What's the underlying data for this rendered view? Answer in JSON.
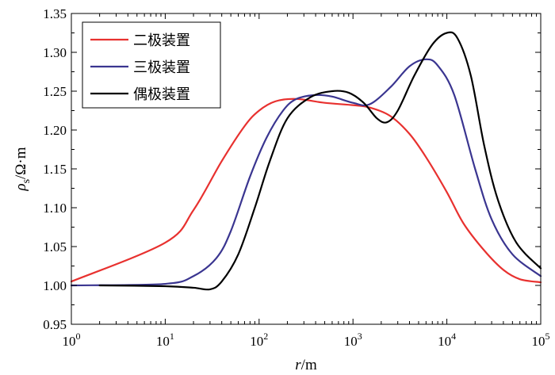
{
  "chart_data": {
    "type": "line",
    "xscale": "log",
    "xlim": [
      1,
      100000
    ],
    "ylim": [
      0.95,
      1.35
    ],
    "grid": false,
    "legend_position": "top-left",
    "xlabel": {
      "symbol": "r",
      "unit": "/m"
    },
    "ylabel": {
      "symbol": "ρ",
      "sub": "s",
      "unit": "/Ω·m"
    },
    "x_ticks": [
      {
        "base": "10",
        "exp": "0",
        "value": 1
      },
      {
        "base": "10",
        "exp": "1",
        "value": 10
      },
      {
        "base": "10",
        "exp": "2",
        "value": 100
      },
      {
        "base": "10",
        "exp": "3",
        "value": 1000
      },
      {
        "base": "10",
        "exp": "4",
        "value": 10000
      },
      {
        "base": "10",
        "exp": "5",
        "value": 100000
      }
    ],
    "y_ticks": [
      "0.95",
      "1.00",
      "1.05",
      "1.10",
      "1.15",
      "1.20",
      "1.25",
      "1.30",
      "1.35"
    ],
    "series": [
      {
        "name": "二极装置",
        "color": "#e8312f",
        "points": [
          [
            1,
            1.005
          ],
          [
            10,
            1.055
          ],
          [
            20,
            1.097
          ],
          [
            40,
            1.16
          ],
          [
            70,
            1.205
          ],
          [
            100,
            1.225
          ],
          [
            150,
            1.237
          ],
          [
            250,
            1.24
          ],
          [
            500,
            1.235
          ],
          [
            1000,
            1.232
          ],
          [
            1500,
            1.229
          ],
          [
            2500,
            1.218
          ],
          [
            4000,
            1.195
          ],
          [
            6000,
            1.165
          ],
          [
            10000,
            1.12
          ],
          [
            15000,
            1.08
          ],
          [
            25000,
            1.045
          ],
          [
            40000,
            1.02
          ],
          [
            60000,
            1.008
          ],
          [
            100000,
            1.004
          ]
        ]
      },
      {
        "name": "三极装置",
        "color": "#3a3590",
        "points": [
          [
            1,
            1.0
          ],
          [
            10,
            1.002
          ],
          [
            20,
            1.012
          ],
          [
            35,
            1.035
          ],
          [
            50,
            1.07
          ],
          [
            80,
            1.14
          ],
          [
            120,
            1.19
          ],
          [
            180,
            1.225
          ],
          [
            250,
            1.24
          ],
          [
            400,
            1.245
          ],
          [
            600,
            1.243
          ],
          [
            1000,
            1.235
          ],
          [
            1500,
            1.233
          ],
          [
            2500,
            1.255
          ],
          [
            4000,
            1.282
          ],
          [
            6000,
            1.291
          ],
          [
            8000,
            1.283
          ],
          [
            12000,
            1.245
          ],
          [
            20000,
            1.15
          ],
          [
            30000,
            1.085
          ],
          [
            50000,
            1.04
          ],
          [
            100000,
            1.012
          ]
        ]
      },
      {
        "name": "偶极装置",
        "color": "#000000",
        "points": [
          [
            2,
            1.0
          ],
          [
            10,
            0.999
          ],
          [
            20,
            0.997
          ],
          [
            30,
            0.995
          ],
          [
            40,
            1.005
          ],
          [
            60,
            1.04
          ],
          [
            90,
            1.1
          ],
          [
            130,
            1.16
          ],
          [
            200,
            1.215
          ],
          [
            350,
            1.242
          ],
          [
            600,
            1.25
          ],
          [
            900,
            1.248
          ],
          [
            1300,
            1.235
          ],
          [
            1800,
            1.215
          ],
          [
            2300,
            1.21
          ],
          [
            3000,
            1.225
          ],
          [
            4500,
            1.27
          ],
          [
            7000,
            1.31
          ],
          [
            10000,
            1.325
          ],
          [
            13000,
            1.318
          ],
          [
            18000,
            1.27
          ],
          [
            25000,
            1.18
          ],
          [
            35000,
            1.11
          ],
          [
            55000,
            1.055
          ],
          [
            100000,
            1.022
          ]
        ]
      }
    ]
  }
}
